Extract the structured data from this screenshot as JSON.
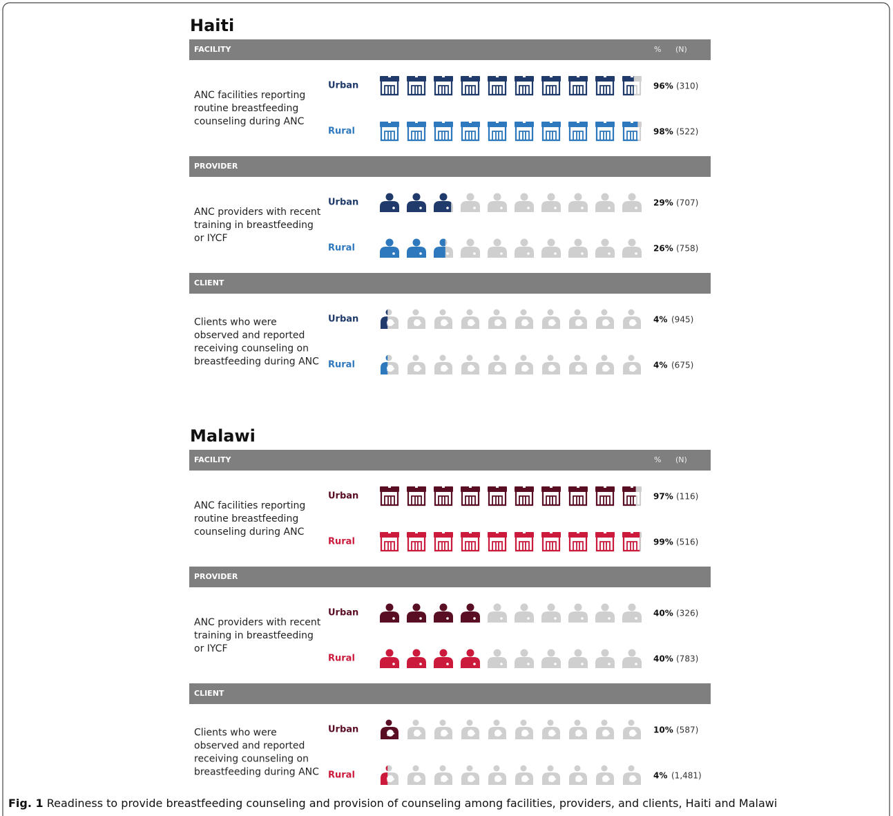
{
  "chart_data": {
    "type": "pictogram",
    "xlim": [
      0,
      100
    ],
    "panels": [
      {
        "title": "Haiti",
        "pct_header": "%",
        "n_header": "(N)",
        "colors": {
          "Urban": "#1f3a6b",
          "Rural": "#2e78bd"
        },
        "sections": [
          {
            "header": "FACILITY",
            "icon": "facility",
            "label": [
              "ANC facilities reporting",
              "routine breastfeeding",
              "counseling during ANC"
            ],
            "rows": [
              {
                "name": "Urban",
                "value": 96,
                "value_label": "96%",
                "n_label": "(310)"
              },
              {
                "name": "Rural",
                "value": 98,
                "value_label": "98%",
                "n_label": "(522)"
              }
            ]
          },
          {
            "header": "PROVIDER",
            "icon": "provider",
            "label": [
              "ANC providers with recent",
              "training in breastfeeding",
              "or IYCF"
            ],
            "rows": [
              {
                "name": "Urban",
                "value": 29,
                "value_label": "29%",
                "n_label": "(707)"
              },
              {
                "name": "Rural",
                "value": 26,
                "value_label": "26%",
                "n_label": "(758)"
              }
            ]
          },
          {
            "header": "CLIENT",
            "icon": "client",
            "label": [
              "Clients who were",
              "observed and reported",
              "receiving counseling on",
              "breastfeeding during ANC"
            ],
            "rows": [
              {
                "name": "Urban",
                "value": 4,
                "value_label": "4%",
                "n_label": "(945)"
              },
              {
                "name": "Rural",
                "value": 4,
                "value_label": "4%",
                "n_label": "(675)"
              }
            ]
          }
        ]
      },
      {
        "title": "Malawi",
        "pct_header": "%",
        "n_header": "(N)",
        "colors": {
          "Urban": "#5a0e24",
          "Rural": "#cc1a3c"
        },
        "sections": [
          {
            "header": "FACILITY",
            "icon": "facility",
            "label": [
              "ANC facilities reporting",
              "routine breastfeeding",
              "counseling during ANC"
            ],
            "rows": [
              {
                "name": "Urban",
                "value": 97,
                "value_label": "97%",
                "n_label": "(116)"
              },
              {
                "name": "Rural",
                "value": 99,
                "value_label": "99%",
                "n_label": "(516)"
              }
            ]
          },
          {
            "header": "PROVIDER",
            "icon": "provider",
            "label": [
              "ANC providers with recent",
              "training in breastfeeding",
              "or IYCF"
            ],
            "rows": [
              {
                "name": "Urban",
                "value": 40,
                "value_label": "40%",
                "n_label": "(326)"
              },
              {
                "name": "Rural",
                "value": 40,
                "value_label": "40%",
                "n_label": "(783)"
              }
            ]
          },
          {
            "header": "CLIENT",
            "icon": "client",
            "label": [
              "Clients who were",
              "observed and reported",
              "receiving counseling on",
              "breastfeeding during ANC"
            ],
            "rows": [
              {
                "name": "Urban",
                "value": 10,
                "value_label": "10%",
                "n_label": "(587)"
              },
              {
                "name": "Rural",
                "value": 4,
                "value_label": "4%",
                "n_label": "(1,481)"
              }
            ]
          }
        ]
      }
    ],
    "caption_label": "Fig. 1",
    "caption": "Readiness to provide breastfeeding counseling and provision of counseling among facilities, providers, and clients, Haiti and Malawi"
  }
}
